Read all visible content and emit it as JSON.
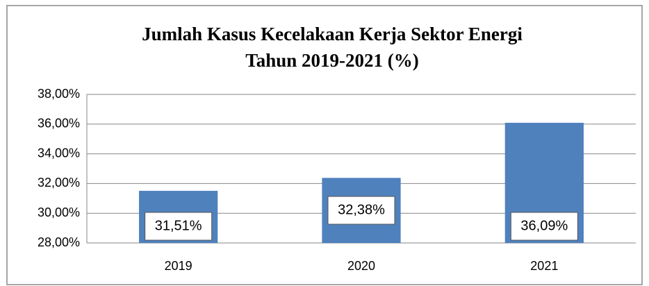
{
  "chart_data": {
    "type": "bar",
    "title": [
      "Jumlah Kasus Kecelakaan Kerja Sektor Energi",
      "Tahun 2019-2021 (%)"
    ],
    "categories": [
      "2019",
      "2020",
      "2021"
    ],
    "values": [
      31.51,
      32.38,
      36.09
    ],
    "value_labels": [
      "31,51%",
      "32,38%",
      "36,09%"
    ],
    "color": "#4f81bd",
    "ylim": [
      28,
      38
    ],
    "yticks": [
      {
        "value": 28,
        "label": "28,00%"
      },
      {
        "value": 30,
        "label": "30,00%"
      },
      {
        "value": 32,
        "label": "32,00%"
      },
      {
        "value": 34,
        "label": "34,00%"
      },
      {
        "value": 36,
        "label": "36,00%"
      },
      {
        "value": 38,
        "label": "38,00%"
      }
    ],
    "grid": true
  }
}
